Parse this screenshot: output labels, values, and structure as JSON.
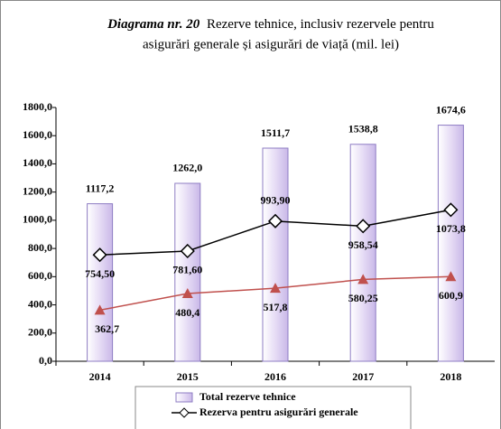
{
  "chart_data": {
    "type": "bar_line",
    "title_label": "Diagrama nr. 20",
    "title": "Rezerve tehnice, inclusiv rezervele pentru asigurări generale și asigurări de viață (mil. lei)",
    "categories": [
      "2014",
      "2015",
      "2016",
      "2017",
      "2018"
    ],
    "series": [
      {
        "name": "Total rezerve tehnice",
        "kind": "bar",
        "color": "#e6dcf5",
        "values": [
          1117.2,
          1262.0,
          1511.7,
          1538.8,
          1674.6
        ],
        "value_labels": [
          "1117,2",
          "1262,0",
          "1511,7",
          "1538,8",
          "1674,6"
        ]
      },
      {
        "name": "Rezerva pentru asigurări generale",
        "kind": "line",
        "color": "#000000",
        "values": [
          754.5,
          781.6,
          993.9,
          958.54,
          1073.8
        ],
        "value_labels": [
          "754,50",
          "781,60",
          "993,90",
          "958,54",
          "1073,8"
        ]
      },
      {
        "kind": "line",
        "color": "#c0504d",
        "values": [
          362.7,
          480.4,
          517.8,
          580.25,
          600.9
        ],
        "value_labels": [
          "362,7",
          "480,4",
          "517,8",
          "580,25",
          "600,9"
        ]
      }
    ],
    "ylim": [
      0,
      1800
    ],
    "yticks": [
      {
        "value": 0,
        "label": "0,0"
      },
      {
        "value": 200,
        "label": "200,0"
      },
      {
        "value": 400,
        "label": "400,0"
      },
      {
        "value": 600,
        "label": "600,0"
      },
      {
        "value": 800,
        "label": "800,0"
      },
      {
        "value": 1000,
        "label": "1000,0"
      },
      {
        "value": 1200,
        "label": "1200,0"
      },
      {
        "value": 1400,
        "label": "1400,0"
      },
      {
        "value": 1600,
        "label": "1600,0"
      },
      {
        "value": 1800,
        "label": "1800,0"
      }
    ]
  }
}
